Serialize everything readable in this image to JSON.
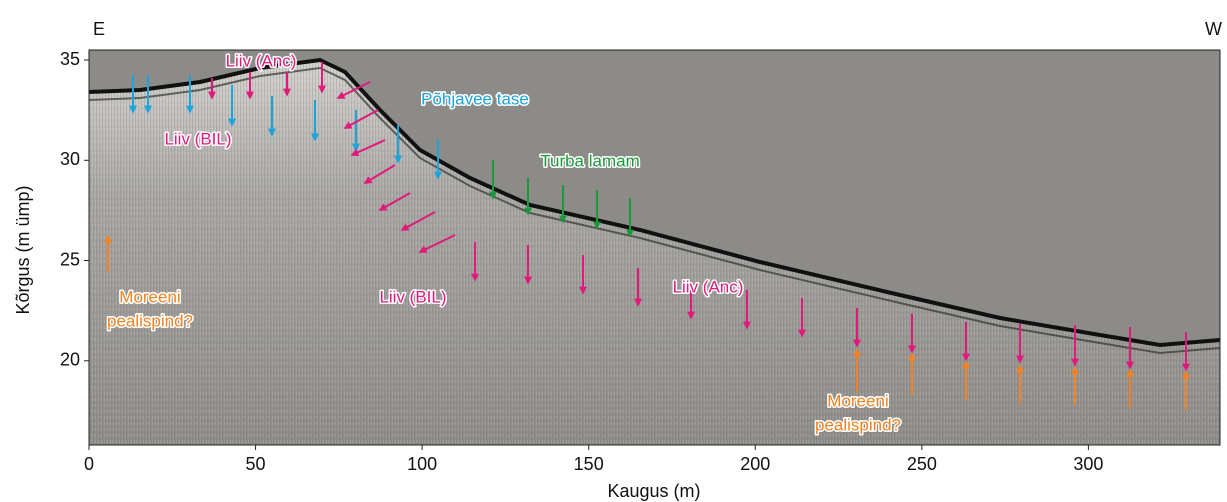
{
  "chart_data": {
    "type": "radargram",
    "left_label": "E",
    "right_label": "W",
    "x_label": "Kaugus (m)",
    "y_label": "Kõrgus (m ümp)",
    "xlim": [
      0,
      339.5
    ],
    "ylim": [
      15.8,
      35.5
    ],
    "xticks": [
      0,
      50,
      100,
      150,
      200,
      250,
      300
    ],
    "yticks": [
      20,
      25,
      30,
      35
    ],
    "annotations": [
      {
        "lines": [
          "Liiv (Anc)"
        ],
        "color": "#e0197d"
      },
      {
        "lines": [
          "Põhjavee tase"
        ],
        "color": "#1aa3dd"
      },
      {
        "lines": [
          "Liiv (BIL)"
        ],
        "color": "#e0197d"
      },
      {
        "lines": [
          "Turba lamam"
        ],
        "color": "#1a9a3a"
      },
      {
        "lines": [
          "Liiv (BIL)"
        ],
        "color": "#e0197d"
      },
      {
        "lines": [
          "Liiv (Anc)"
        ],
        "color": "#e0197d"
      },
      {
        "lines": [
          "Moreeni",
          "pealispind?"
        ],
        "color": "#f58220"
      },
      {
        "lines": [
          "Moreeni",
          "pealispind?"
        ],
        "color": "#f58220"
      }
    ]
  }
}
